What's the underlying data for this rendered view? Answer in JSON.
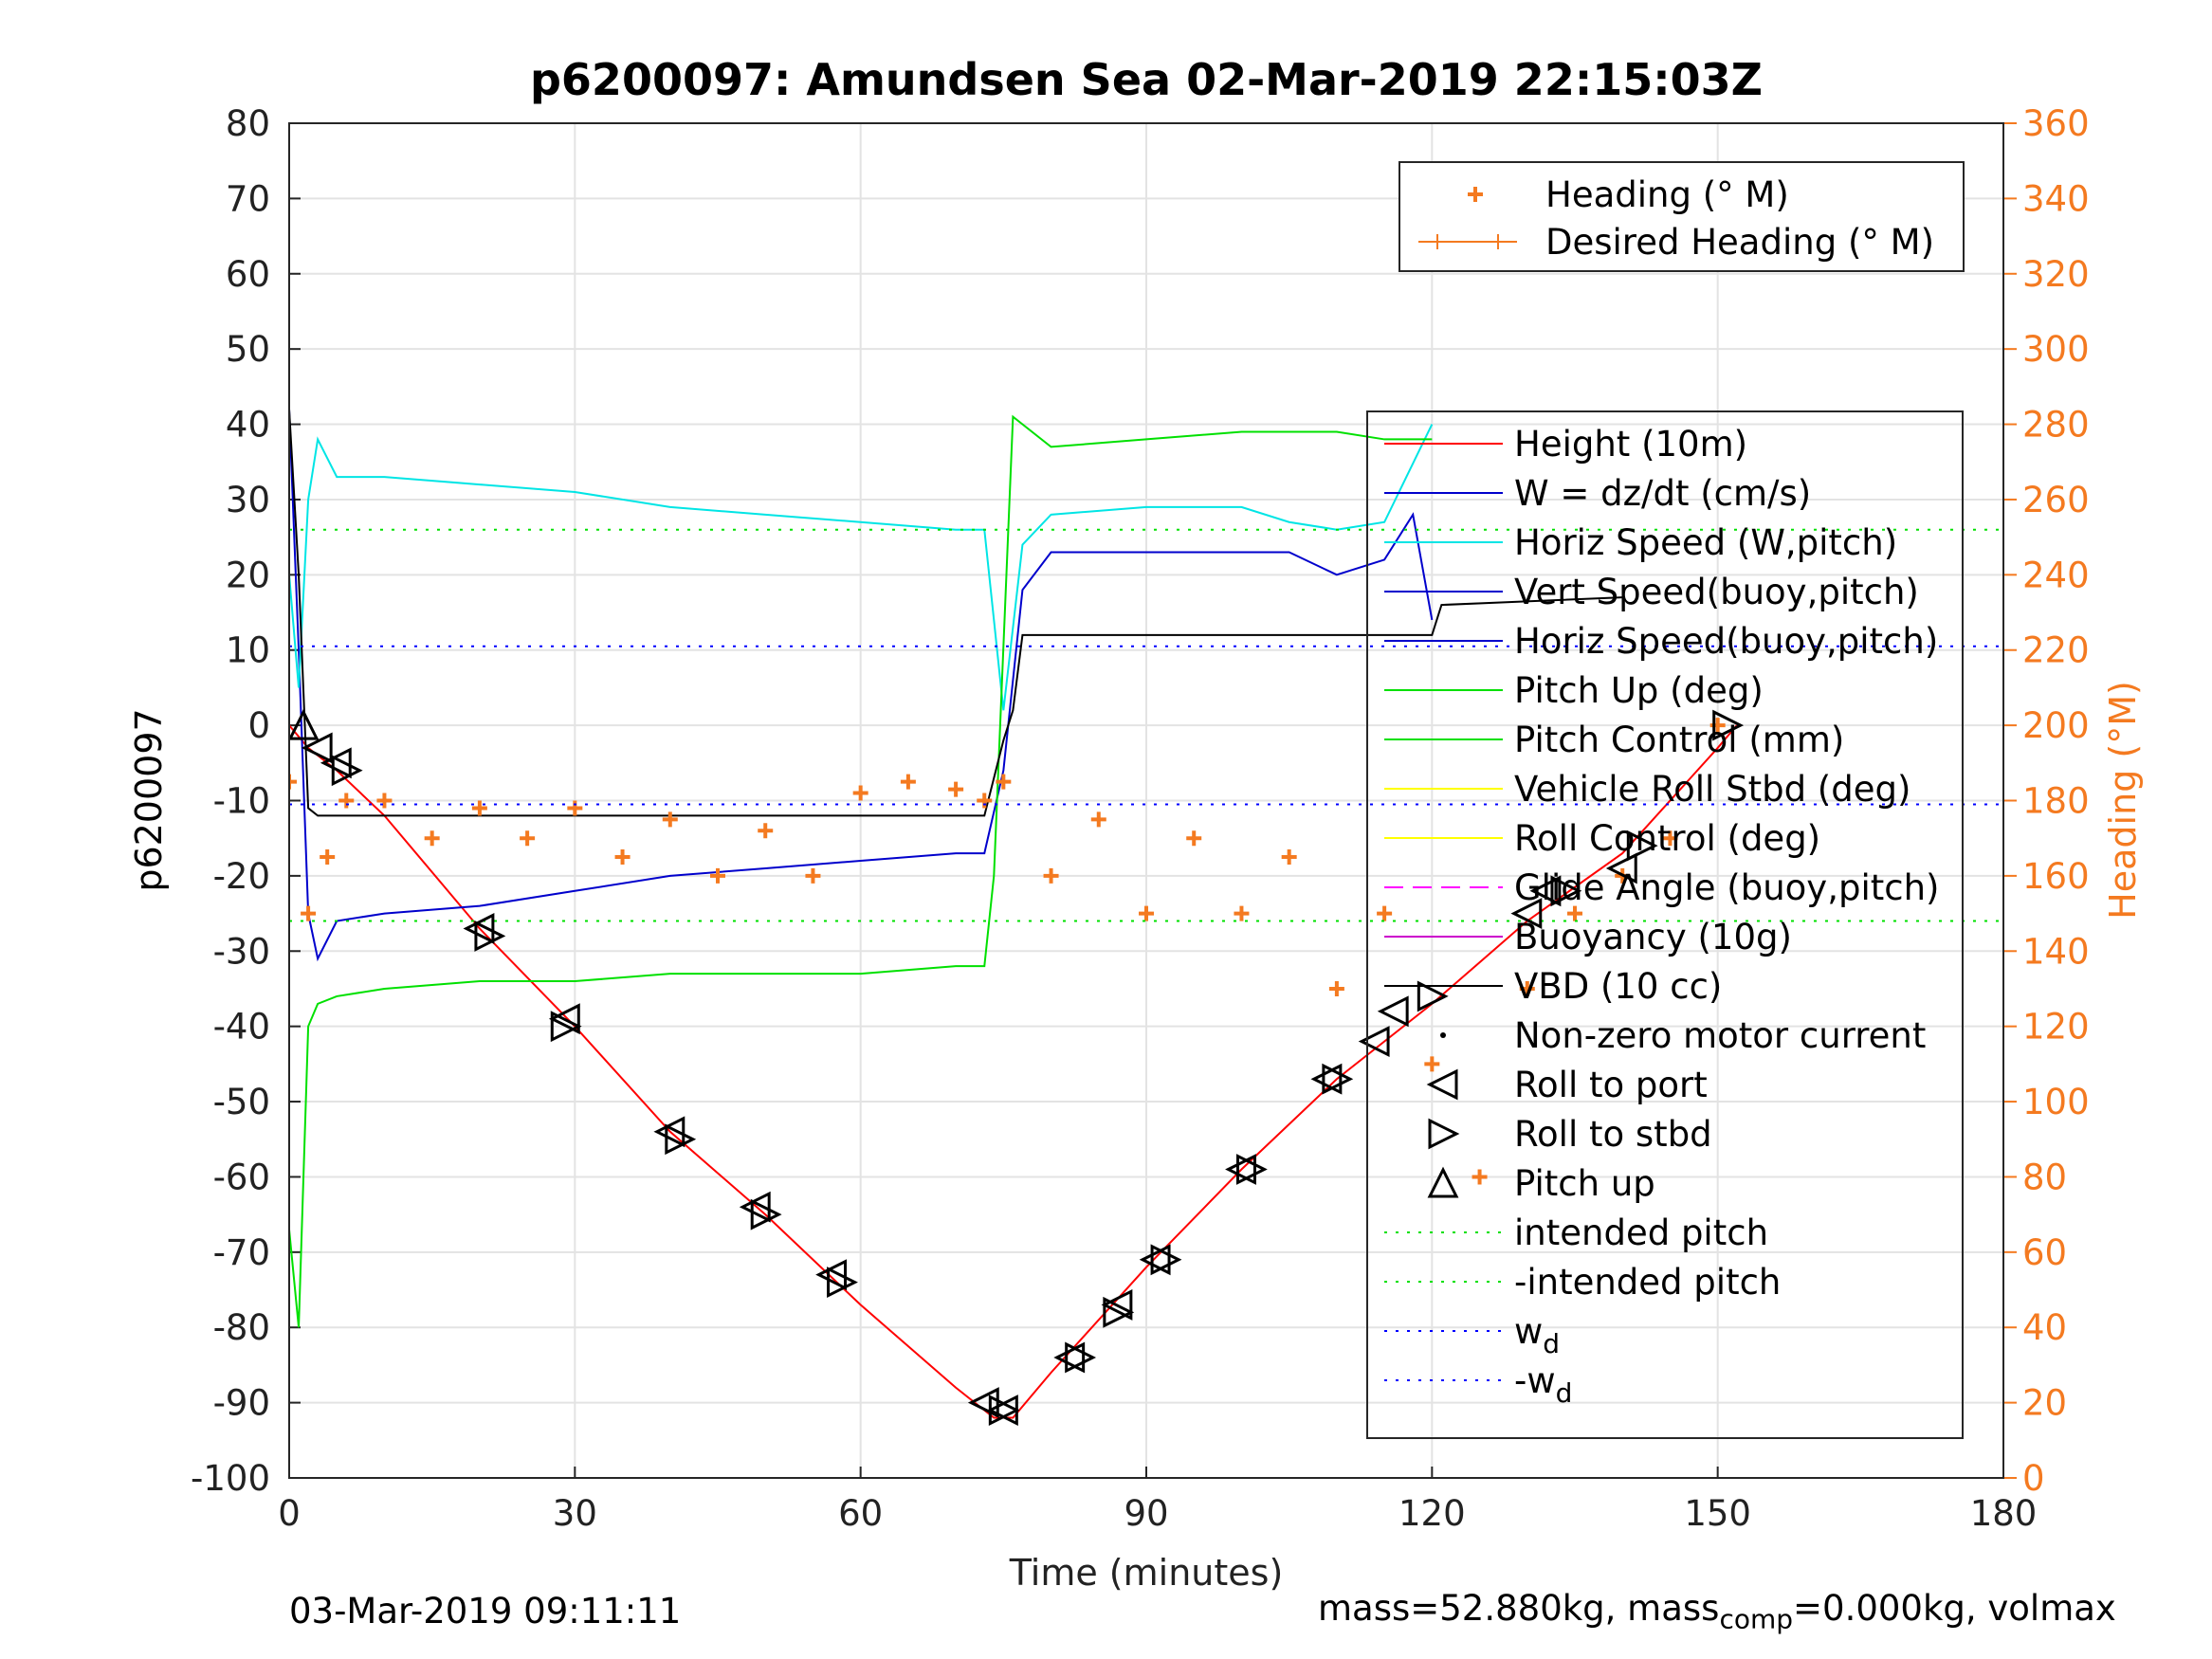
{
  "chart_data": {
    "type": "line",
    "title": "p6200097: Amundsen Sea 02-Mar-2019 22:15:03Z",
    "xlabel": "Time (minutes)",
    "ylabel": "p6200097",
    "ylabel_right": "Heading (°M)",
    "xlim": [
      0,
      180
    ],
    "ylim": [
      -100,
      80
    ],
    "ylim_right": [
      0,
      360
    ],
    "xticks": [
      "0",
      "30",
      "60",
      "90",
      "120",
      "150",
      "180"
    ],
    "yticks": [
      "-100",
      "-90",
      "-80",
      "-70",
      "-60",
      "-50",
      "-40",
      "-30",
      "-20",
      "-10",
      "0",
      "10",
      "20",
      "30",
      "40",
      "50",
      "60",
      "70",
      "80"
    ],
    "yticks_right": [
      "0",
      "20",
      "40",
      "60",
      "80",
      "100",
      "120",
      "140",
      "160",
      "180",
      "200",
      "220",
      "240",
      "260",
      "280",
      "300",
      "320",
      "340",
      "360"
    ],
    "grid": true,
    "colors": {
      "height": "#ff0000",
      "w": "#0000cc",
      "horiz_speed_w": "#00e5e5",
      "pitch_up": "#00e000",
      "vehicle_roll": "#ffff00",
      "glide_angle": "#ff00ff",
      "buoyancy": "#cc00cc",
      "vbd": "#000000",
      "heading": "#f47a20",
      "intended_pitch": "#00e000",
      "wd": "#0000ff"
    },
    "legend_top": {
      "placement": "top-right",
      "entries": [
        "Heading (° M)",
        "Desired Heading (° M)"
      ]
    },
    "legend_main": {
      "placement": "right",
      "entries": [
        "Height (10m)",
        "W = dz/dt (cm/s)",
        "Horiz Speed (W,pitch)",
        "Vert Speed(buoy,pitch)",
        "Horiz Speed(buoy,pitch)",
        "Pitch Up (deg)",
        "Pitch Control (mm)",
        "Vehicle Roll Stbd (deg)",
        "Roll Control (deg)",
        "Glide Angle (buoy,pitch)",
        "Buoyancy (10g)",
        "VBD (10 cc)",
        "Non-zero motor current",
        "Roll to port",
        "Roll to stbd",
        "Pitch up",
        "intended pitch",
        "-intended pitch",
        "w_d",
        "-w_d"
      ]
    },
    "series": [
      {
        "name": "Height (10m)",
        "x": [
          0,
          2,
          5,
          10,
          20,
          30,
          40,
          50,
          60,
          70,
          74,
          76,
          80,
          90,
          100,
          110,
          120,
          130,
          140,
          150,
          152
        ],
        "y": [
          0,
          -3,
          -6,
          -12,
          -27,
          -40,
          -54,
          -65,
          -77,
          -88,
          -92,
          -92,
          -86,
          -72,
          -59,
          -47,
          -37,
          -26,
          -17,
          -3,
          0
        ]
      },
      {
        "name": "W = dz/dt (cm/s)",
        "x": [
          0,
          1,
          2,
          3,
          5,
          10,
          20,
          30,
          40,
          50,
          60,
          70,
          73,
          75,
          77,
          80,
          90,
          100,
          105,
          110,
          115,
          118,
          120
        ],
        "y": [
          42,
          10,
          -25,
          -31,
          -26,
          -25,
          -24,
          -22,
          -20,
          -19,
          -18,
          -17,
          -17,
          -6,
          18,
          23,
          23,
          23,
          23,
          20,
          22,
          28,
          14
        ]
      },
      {
        "name": "Horiz Speed (W,pitch)",
        "x": [
          0,
          1,
          2,
          3,
          5,
          10,
          20,
          30,
          40,
          50,
          60,
          70,
          73,
          75,
          77,
          80,
          90,
          100,
          105,
          110,
          115,
          120
        ],
        "y": [
          20,
          5,
          30,
          38,
          33,
          33,
          32,
          31,
          29,
          28,
          27,
          26,
          26,
          2,
          24,
          28,
          29,
          29,
          27,
          26,
          27,
          40
        ]
      },
      {
        "name": "Pitch Up (deg)",
        "x": [
          0,
          1,
          2,
          3,
          5,
          10,
          20,
          30,
          40,
          50,
          60,
          70,
          73,
          74,
          76,
          80,
          90,
          100,
          110,
          115,
          120
        ],
        "y": [
          -67,
          -80,
          -40,
          -37,
          -36,
          -35,
          -34,
          -34,
          -33,
          -33,
          -33,
          -32,
          -32,
          -20,
          41,
          37,
          38,
          39,
          39,
          38,
          38
        ]
      },
      {
        "name": "VBD (10 cc)",
        "x": [
          0,
          1,
          2,
          3,
          5,
          73,
          75,
          76,
          77,
          80,
          120,
          121,
          140
        ],
        "y": [
          42,
          20,
          -11,
          -12,
          -12,
          -12,
          -2,
          2,
          12,
          12,
          12,
          16,
          17
        ]
      },
      {
        "name": "Heading (° M)",
        "x": [
          0,
          2,
          4,
          6,
          10,
          15,
          20,
          25,
          30,
          35,
          40,
          45,
          50,
          55,
          60,
          65,
          70,
          73,
          75,
          80,
          85,
          90,
          95,
          100,
          105,
          110,
          115,
          120,
          125,
          130,
          135,
          140,
          145,
          150
        ],
        "y": [
          185,
          150,
          165,
          180,
          180,
          170,
          178,
          170,
          178,
          165,
          175,
          160,
          172,
          160,
          182,
          185,
          183,
          180,
          185,
          160,
          175,
          150,
          170,
          150,
          165,
          130,
          150,
          110,
          80,
          130,
          150,
          160,
          170,
          200
        ]
      },
      {
        "name": "intended pitch",
        "x": [
          0,
          180
        ],
        "y": [
          26,
          26
        ]
      },
      {
        "name": "-intended pitch",
        "x": [
          0,
          180
        ],
        "y": [
          -26,
          -26
        ]
      },
      {
        "name": "w_d",
        "x": [
          0,
          180
        ],
        "y": [
          10.5,
          10.5
        ]
      },
      {
        "name": "-w_d",
        "x": [
          0,
          180
        ],
        "y": [
          -10.5,
          -10.5
        ]
      }
    ],
    "markers": {
      "roll_to_port": {
        "x": [
          3,
          5,
          20,
          29,
          40,
          49,
          57,
          73,
          75,
          82,
          87,
          91,
          100,
          109,
          114,
          116,
          130,
          132,
          140
        ],
        "y": [
          -3,
          -5,
          -27,
          -39,
          -54,
          -64,
          -73,
          -90,
          -91,
          -84,
          -77,
          -71,
          -59,
          -47,
          -42,
          -38,
          -25,
          -22,
          -19
        ]
      },
      "roll_to_stbd": {
        "x": [
          6,
          21,
          29,
          41,
          50,
          58,
          75,
          83,
          87,
          92,
          101,
          110,
          120,
          134,
          142,
          151
        ],
        "y": [
          -6,
          -28,
          -40,
          -55,
          -65,
          -74,
          -91,
          -84,
          -78,
          -71,
          -59,
          -47,
          -36,
          -22,
          -16,
          0
        ]
      },
      "pitch_up": {
        "x": [
          1.5
        ],
        "y": [
          0
        ]
      }
    }
  },
  "footer": {
    "timestamp": "03-Mar-2019 09:11:11",
    "mass_prefix": "mass=52.880kg, mass",
    "mass_sub": "comp",
    "mass_suffix": "=0.000kg, volmax"
  }
}
